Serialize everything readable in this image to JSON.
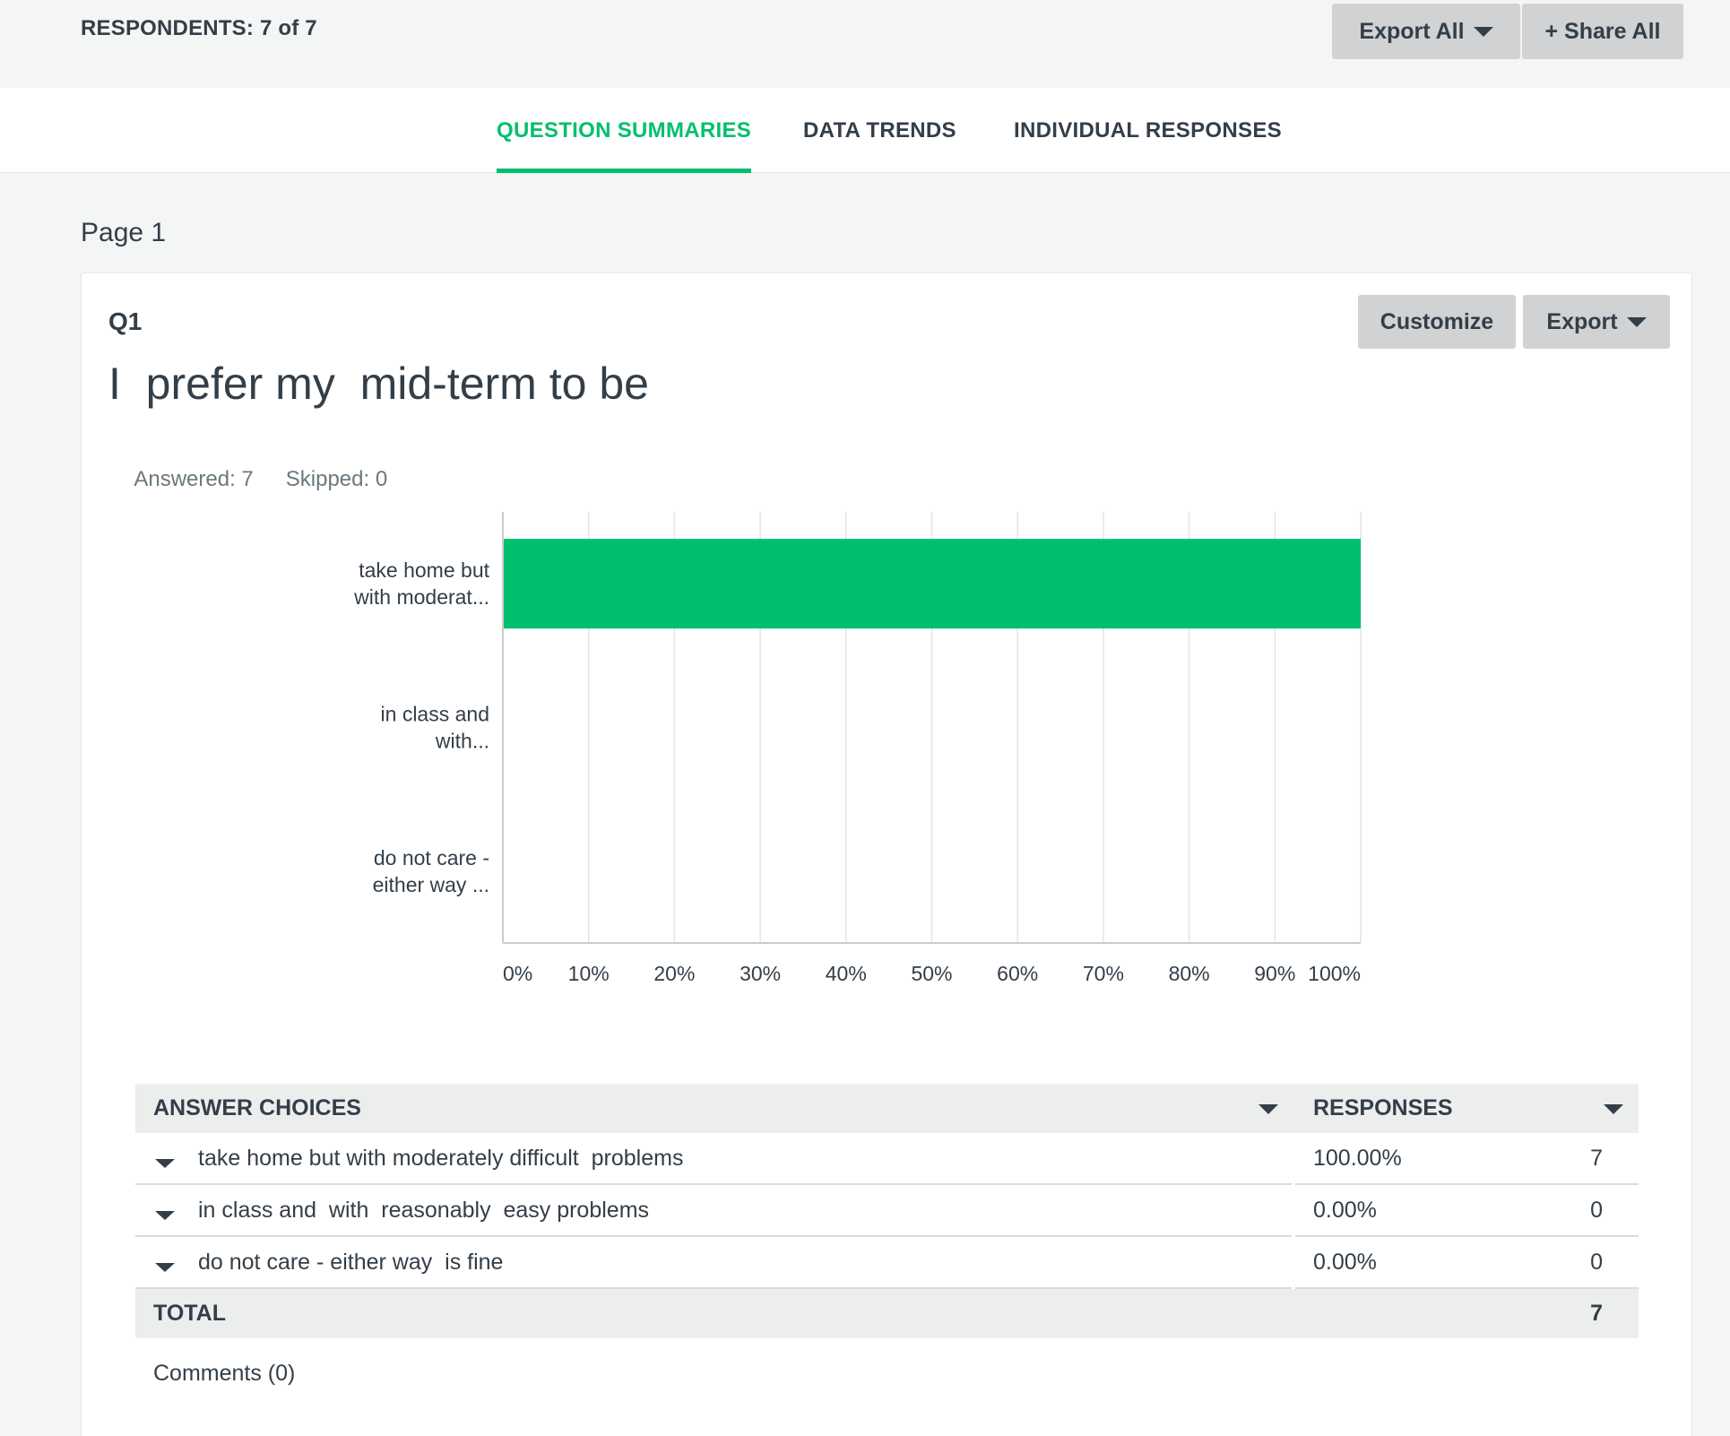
{
  "header": {
    "respondents": "RESPONDENTS: 7 of 7",
    "export_all_label": "Export All",
    "share_all_label": "+ Share All"
  },
  "tabs": [
    {
      "label": "QUESTION SUMMARIES",
      "active": true
    },
    {
      "label": "DATA TRENDS",
      "active": false
    },
    {
      "label": "INDIVIDUAL RESPONSES",
      "active": false
    }
  ],
  "page_label": "Page 1",
  "question": {
    "number": "Q1",
    "title": "I  prefer my  mid-term to be",
    "answered": "Answered: 7",
    "skipped": "Skipped: 0",
    "customize_label": "Customize",
    "export_label": "Export"
  },
  "colors": {
    "accent": "#00bf6f",
    "bar": "#00bf6f",
    "text": "#333e48",
    "button_bg": "#d0d2d3"
  },
  "chart_data": {
    "type": "bar",
    "orientation": "horizontal",
    "categories": [
      [
        "take home but",
        "with moderat..."
      ],
      [
        "in class and",
        "with..."
      ],
      [
        "do not care -",
        "either way ..."
      ]
    ],
    "values": [
      100,
      0,
      0
    ],
    "xticks": [
      "0%",
      "10%",
      "20%",
      "30%",
      "40%",
      "50%",
      "60%",
      "70%",
      "80%",
      "90%",
      "100%"
    ],
    "xlim": [
      0,
      100
    ],
    "grid": true,
    "legend": "none"
  },
  "table": {
    "header_choices": "ANSWER CHOICES",
    "header_responses": "RESPONSES",
    "rows": [
      {
        "choice": "take home but with moderately difficult  problems",
        "percent": "100.00%",
        "count": "7"
      },
      {
        "choice": "in class and  with  reasonably  easy problems",
        "percent": "0.00%",
        "count": "0"
      },
      {
        "choice": "do not care - either way  is fine",
        "percent": "0.00%",
        "count": "0"
      }
    ],
    "total_label": "TOTAL",
    "total_value": "7"
  },
  "comments_label": "Comments (0)"
}
